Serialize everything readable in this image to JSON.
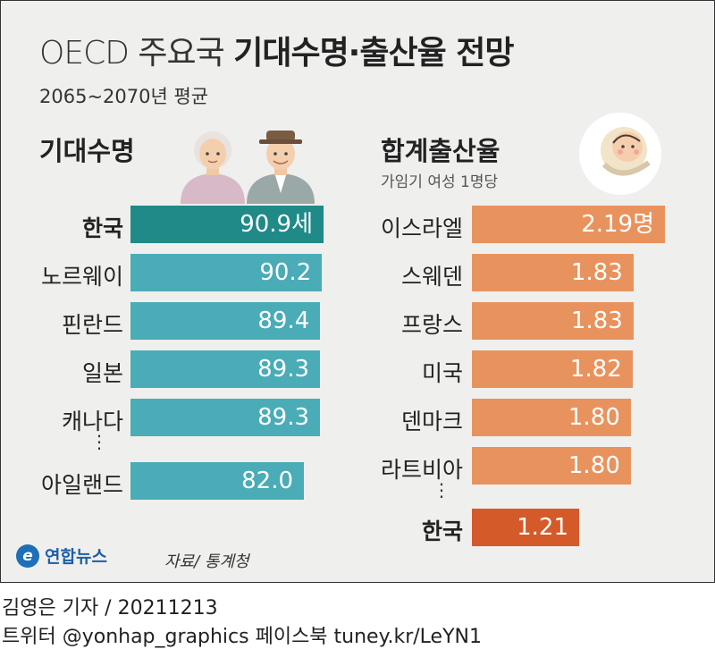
{
  "header": {
    "title_light": "OECD 주요국",
    "title_bold": "기대수명·출산율 전망",
    "subtitle": "2065~2070년 평균"
  },
  "colors": {
    "life_korea": "#1f8a87",
    "life_other": "#4aacb6",
    "birth_other": "#e8935e",
    "birth_korea": "#d45a2a"
  },
  "chart_data": [
    {
      "type": "bar",
      "orientation": "horizontal",
      "title": "기대수명",
      "unit": "세",
      "categories": [
        "한국",
        "노르웨이",
        "핀란드",
        "일본",
        "캐나다",
        "아일랜드"
      ],
      "values": [
        90.9,
        90.2,
        89.4,
        89.3,
        89.3,
        82.0
      ],
      "value_labels": [
        "90.9세",
        "90.2",
        "89.4",
        "89.3",
        "89.3",
        "82.0"
      ],
      "highlight": "한국"
    },
    {
      "type": "bar",
      "orientation": "horizontal",
      "title": "합계출산율",
      "subtitle": "가임기 여성 1명당",
      "unit": "명",
      "categories": [
        "이스라엘",
        "스웨덴",
        "프랑스",
        "미국",
        "덴마크",
        "라트비아",
        "한국"
      ],
      "values": [
        2.19,
        1.83,
        1.83,
        1.82,
        1.8,
        1.8,
        1.21
      ],
      "value_labels": [
        "2.19명",
        "1.83",
        "1.83",
        "1.82",
        "1.80",
        "1.80",
        "1.21"
      ],
      "highlight": "한국"
    }
  ],
  "footer": {
    "logo_text": "연합뉴스",
    "logo_mark": "e",
    "source": "자료/ 통계청",
    "credit_line1": "김영은 기자 / 20211213",
    "credit_line2": "트위터 @yonhap_graphics  페이스북 tuney.kr/LeYN1"
  },
  "ellipsis": "⋮"
}
